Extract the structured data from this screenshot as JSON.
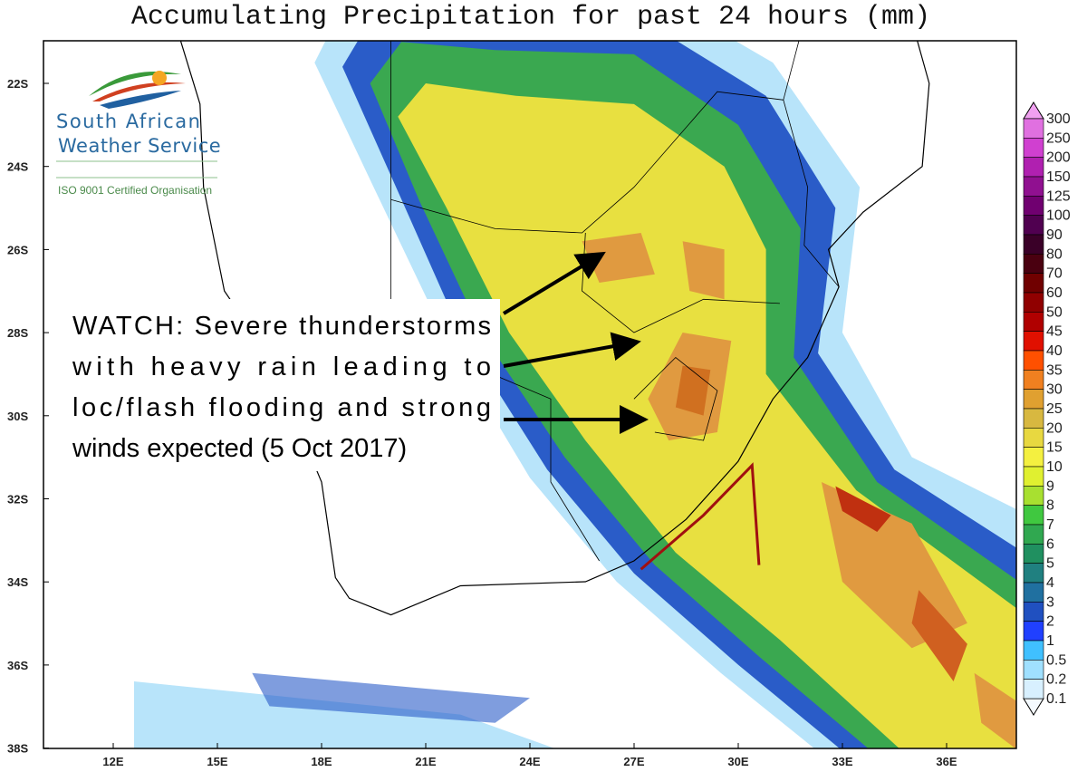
{
  "title": "Accumulating Precipitation for past 24 hours (mm)",
  "logo": {
    "line1": "South African",
    "line2": "Weather Service",
    "line3": "ISO 9001 Certified Organisation"
  },
  "annotation": {
    "lines": [
      "WATCH: Severe thunderstorms",
      "with heavy rain leading to",
      "loc/flash flooding and strong",
      "winds expected (5 Oct 2017)"
    ]
  },
  "lat_labels": [
    "22S",
    "24S",
    "26S",
    "28S",
    "30S",
    "32S",
    "34S",
    "36S",
    "38S"
  ],
  "lon_labels": [
    "12E",
    "15E",
    "18E",
    "21E",
    "24E",
    "27E",
    "30E",
    "33E",
    "36E"
  ],
  "colorbar": {
    "labels": [
      "300",
      "250",
      "200",
      "150",
      "125",
      "100",
      "90",
      "80",
      "70",
      "60",
      "50",
      "45",
      "40",
      "35",
      "30",
      "25",
      "20",
      "15",
      "10",
      "9",
      "8",
      "7",
      "6",
      "5",
      "4",
      "3",
      "2",
      "1",
      "0.5",
      "0.2",
      "0.1"
    ],
    "colors": [
      "#e070e0",
      "#d040d0",
      "#b020b0",
      "#901090",
      "#700070",
      "#500050",
      "#3a0028",
      "#4a0010",
      "#700000",
      "#900000",
      "#b00000",
      "#e01000",
      "#ff5000",
      "#f08020",
      "#e0a030",
      "#d8b840",
      "#e8d840",
      "#f4f040",
      "#e0f030",
      "#a8e030",
      "#40c840",
      "#30a850",
      "#209060",
      "#208080",
      "#2070a0",
      "#2050c0",
      "#2040ff",
      "#40c0ff",
      "#a0e0ff",
      "#d8f0ff"
    ]
  }
}
